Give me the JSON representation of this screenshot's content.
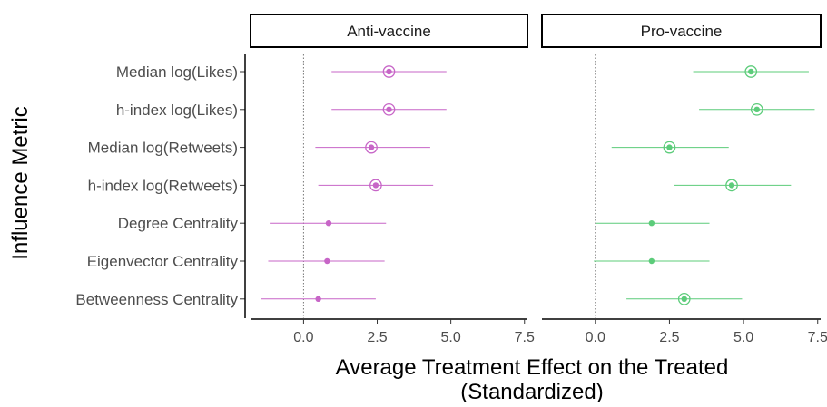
{
  "chart_data": {
    "type": "forest",
    "xlabel_line1": "Average Treatment Effect on the Treated",
    "xlabel_line2": "(Standardized)",
    "ylabel": "Influence Metric",
    "xlim": [
      -1.8,
      7.6
    ],
    "xticks": [
      "0.0",
      "2.5",
      "5.0",
      "7.5"
    ],
    "reference_line": 0,
    "categories": [
      "Median log(Likes)",
      "h-index log(Likes)",
      "Median log(Retweets)",
      "h-index log(Retweets)",
      "Degree Centrality",
      "Eigenvector Centrality",
      "Betweenness Centrality"
    ],
    "panels": [
      {
        "label": "Anti-vaccine",
        "color": "#c765c7",
        "estimates": [
          {
            "value": 2.9,
            "low": 0.95,
            "high": 4.85,
            "circled": true
          },
          {
            "value": 2.9,
            "low": 0.95,
            "high": 4.85,
            "circled": true
          },
          {
            "value": 2.3,
            "low": 0.4,
            "high": 4.3,
            "circled": true
          },
          {
            "value": 2.45,
            "low": 0.5,
            "high": 4.4,
            "circled": true
          },
          {
            "value": 0.85,
            "low": -1.15,
            "high": 2.8,
            "circled": false
          },
          {
            "value": 0.8,
            "low": -1.2,
            "high": 2.75,
            "circled": false
          },
          {
            "value": 0.5,
            "low": -1.45,
            "high": 2.45,
            "circled": false
          }
        ]
      },
      {
        "label": "Pro-vaccine",
        "color": "#5ccc7a",
        "estimates": [
          {
            "value": 5.25,
            "low": 3.3,
            "high": 7.2,
            "circled": true
          },
          {
            "value": 5.45,
            "low": 3.5,
            "high": 7.4,
            "circled": true
          },
          {
            "value": 2.5,
            "low": 0.55,
            "high": 4.5,
            "circled": true
          },
          {
            "value": 4.6,
            "low": 2.65,
            "high": 6.6,
            "circled": true
          },
          {
            "value": 1.9,
            "low": 0.0,
            "high": 3.85,
            "circled": false
          },
          {
            "value": 1.9,
            "low": -0.05,
            "high": 3.85,
            "circled": false
          },
          {
            "value": 3.0,
            "low": 1.05,
            "high": 4.95,
            "circled": true
          }
        ]
      }
    ]
  }
}
